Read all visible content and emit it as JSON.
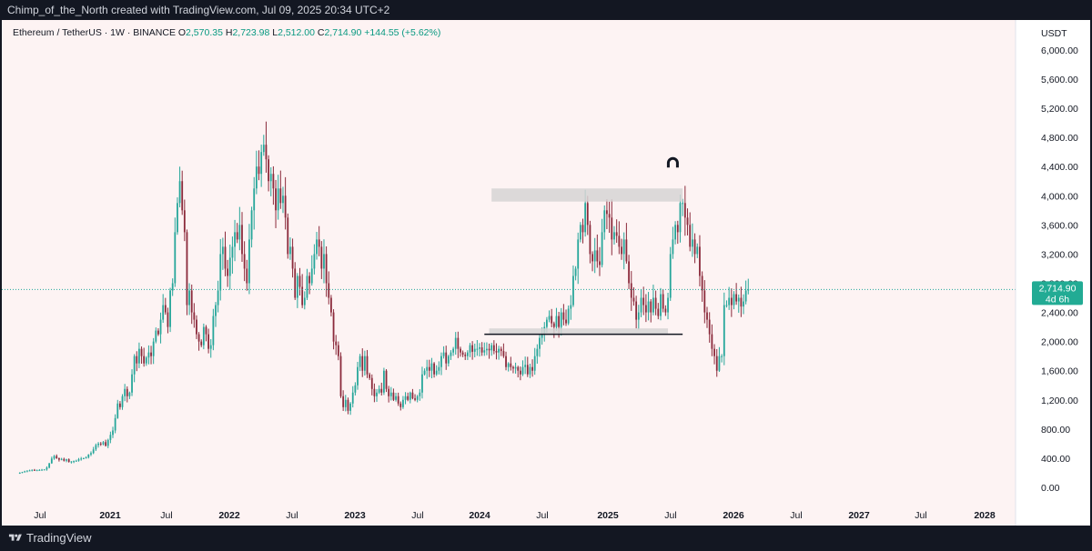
{
  "header": {
    "credit": "Chimp_of_the_North created with TradingView.com, Jul 09, 2025 20:34 UTC+2"
  },
  "footer": {
    "brand": "TradingView"
  },
  "symbol": {
    "name": "Ethereum / TetherUS · 1W · BINANCE",
    "open_label": "O",
    "open": "2,570.35",
    "high_label": "H",
    "high": "2,723.98",
    "low_label": "L",
    "low": "2,512.00",
    "close_label": "C",
    "close": "2,714.90",
    "change": "+144.55 (+5.62%)"
  },
  "currency": "USDT",
  "price_tag": {
    "value": "2,714.90",
    "countdown": "4d 6h"
  },
  "colors": {
    "up": "#26a69a",
    "down": "#8b2a3b",
    "background": "#fdf3f3",
    "zone": "#d6d3d4",
    "tag": "#22ab94"
  },
  "chart_data": {
    "type": "candlestick",
    "x_axis_labels": [
      "Jul",
      "2021",
      "Jul",
      "2022",
      "Jul",
      "2023",
      "Jul",
      "2024",
      "Jul",
      "2025",
      "Jul",
      "2026",
      "Jul",
      "2027",
      "Jul",
      "2028"
    ],
    "y_axis_labels": [
      "6,000.00",
      "5,600.00",
      "5,200.00",
      "4,800.00",
      "4,400.00",
      "4,000.00",
      "3,600.00",
      "3,200.00",
      "2,800.00",
      "2,400.00",
      "2,000.00",
      "1,600.00",
      "1,200.00",
      "800.00",
      "400.00",
      "0.00"
    ],
    "ylim": [
      0,
      6000
    ],
    "start_date": "2020-05-04",
    "interval": "1W",
    "weekly_closes": [
      200,
      210,
      220,
      230,
      232,
      240,
      230,
      235,
      238,
      242,
      245,
      270,
      330,
      395,
      430,
      400,
      380,
      390,
      365,
      385,
      350,
      355,
      360,
      365,
      385,
      395,
      400,
      410,
      450,
      470,
      520,
      580,
      600,
      590,
      620,
      570,
      650,
      720,
      780,
      950,
      1150,
      1100,
      1250,
      1350,
      1250,
      1300,
      1550,
      1800,
      1700,
      1900,
      1800,
      1700,
      1780,
      1850,
      1800,
      2000,
      2150,
      2100,
      2300,
      2500,
      2400,
      2200,
      2700,
      2800,
      3500,
      3900,
      4200,
      3800,
      3500,
      2500,
      2700,
      2400,
      2300,
      2100,
      2000,
      1950,
      2200,
      2100,
      1900,
      1950,
      2350,
      2500,
      2700,
      3200,
      3300,
      3000,
      2900,
      3150,
      3300,
      3500,
      3400,
      3600,
      3200,
      3000,
      2800,
      3400,
      3800,
      4100,
      4400,
      4300,
      4600,
      4700,
      4500,
      4200,
      4300,
      4100,
      3800,
      4100,
      3900,
      4000,
      3700,
      3200,
      3300,
      3000,
      2600,
      2900,
      2750,
      2500,
      2600,
      2900,
      2800,
      3000,
      3200,
      3400,
      3300,
      3000,
      3200,
      2800,
      2600,
      2400,
      2000,
      1950,
      1800,
      1250,
      1100,
      1200,
      1050,
      1150,
      1300,
      1400,
      1650,
      1800,
      1600,
      1800,
      1550,
      1500,
      1350,
      1250,
      1300,
      1350,
      1300,
      1600,
      1350,
      1250,
      1300,
      1200,
      1250,
      1150,
      1100,
      1200,
      1250,
      1200,
      1300,
      1220,
      1200,
      1250,
      1300,
      1550,
      1600,
      1650,
      1600,
      1700,
      1550,
      1600,
      1650,
      1800,
      1850,
      1700,
      1800,
      1850,
      1900,
      2050,
      1900,
      1850,
      1820,
      1800,
      1850,
      1950,
      1860,
      1900,
      1900,
      1920,
      1850,
      1880,
      1900,
      1880,
      1950,
      1870,
      1850,
      1900,
      1870,
      1800,
      1650,
      1700,
      1650,
      1630,
      1650,
      1600,
      1550,
      1650,
      1680,
      1550,
      1650,
      1600,
      1800,
      1900,
      2050,
      2100,
      2200,
      2300,
      2350,
      2250,
      2200,
      2350,
      2200,
      2400,
      2300,
      2250,
      2450,
      2500,
      2900,
      3000,
      3400,
      3600,
      3500,
      3900,
      3600,
      3200,
      3100,
      3250,
      3100,
      3050,
      3500,
      3800,
      3750,
      3700,
      3400,
      3500,
      3450,
      3300,
      3200,
      3400,
      3100,
      2800,
      2600,
      2550,
      2300,
      2400,
      2600,
      2500,
      2400,
      2550,
      2400,
      2600,
      2450,
      2350,
      2650,
      2450,
      2400,
      2600,
      3200,
      3400,
      3600,
      3500,
      3900,
      3900,
      3700,
      3600,
      3300,
      3400,
      3200,
      3300,
      2900,
      2700,
      2400,
      2300,
      2100,
      1900,
      1800,
      1600,
      1800,
      1800,
      2500,
      2500,
      2600,
      2500,
      2650,
      2550,
      2600,
      2480,
      2550,
      2700,
      2714.9
    ],
    "annotations": [
      {
        "kind": "supply_zone",
        "price_low": 3920,
        "price_high": 4100,
        "from": "2024-02-05",
        "to": "2025-08-11"
      },
      {
        "kind": "demand_zone",
        "price_low": 2100,
        "price_high": 2180,
        "from": "2024-01-29",
        "to": "2025-06-30"
      },
      {
        "kind": "support_line",
        "price": 2100,
        "from": "2024-01-15",
        "to": "2025-08-11"
      },
      {
        "kind": "price_line",
        "price": 2714.9
      },
      {
        "kind": "magnet_icon",
        "price": 4450,
        "date": "2025-07-14"
      }
    ]
  }
}
